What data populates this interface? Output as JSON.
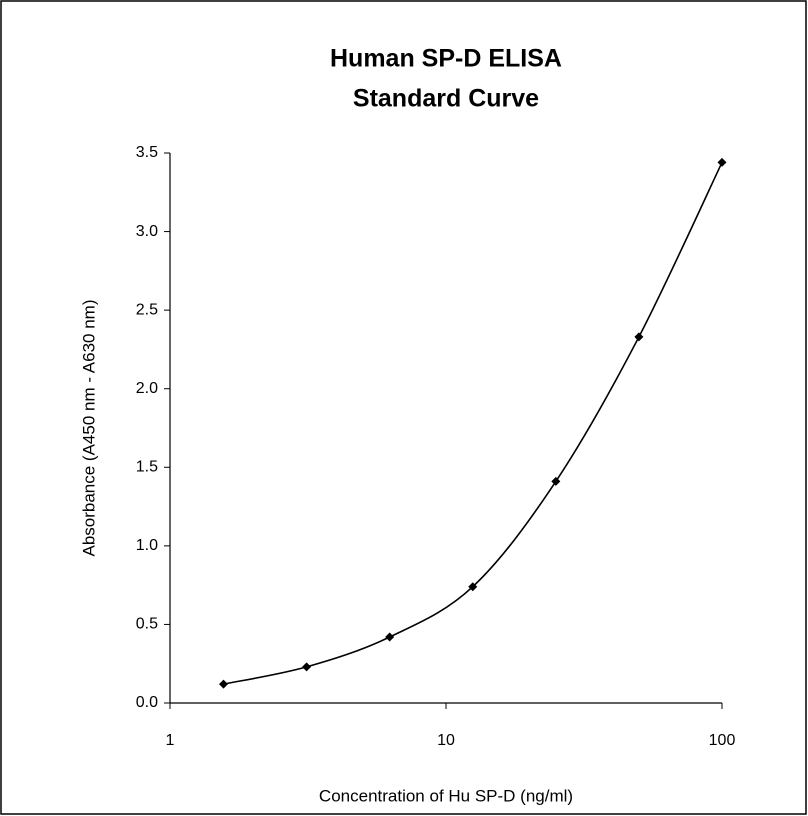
{
  "chart_data": {
    "type": "line",
    "title": [
      "Human SP-D ELISA",
      "Standard Curve"
    ],
    "x_label": "Concentration of Hu SP-D (ng/ml)",
    "y_label": "Absorbance (A450 nm - A630 nm)",
    "x": [
      1.5625,
      3.125,
      6.25,
      12.5,
      25,
      50,
      100
    ],
    "series": [
      {
        "color": "#000000",
        "values": [
          0.12,
          0.23,
          0.42,
          0.74,
          1.41,
          2.33,
          3.44
        ]
      }
    ],
    "x_scale": "log",
    "xlim": [
      1,
      100
    ],
    "xticks": [
      1,
      10,
      100
    ],
    "ylim": [
      0,
      3.5
    ],
    "yticks": [
      {
        "value": 0,
        "label": "0.0"
      },
      0.5,
      {
        "value": 1,
        "label": "1.0"
      },
      1.5,
      {
        "value": 2,
        "label": "2.0"
      },
      2.5,
      {
        "value": 3,
        "label": "3.0"
      },
      3.5
    ],
    "grid": false
  }
}
